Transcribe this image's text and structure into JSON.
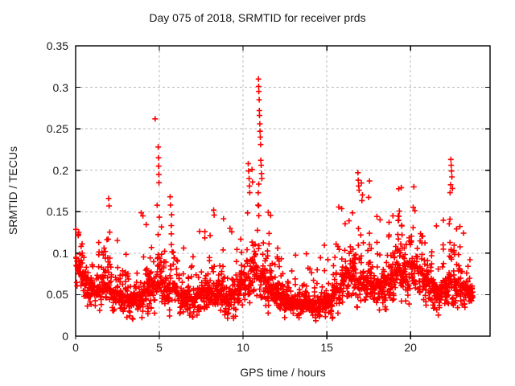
{
  "chart_data": {
    "type": "scatter",
    "title": "Day 075 of 2018, SRMTID for receiver prds",
    "xlabel": "GPS time / hours",
    "ylabel": "SRMTID / TECUs",
    "xlim": [
      0,
      24.75
    ],
    "ylim": [
      0,
      0.35
    ],
    "xticks": [
      0,
      5,
      10,
      15,
      20
    ],
    "xtick_labels": [
      "0",
      "5",
      "10",
      "15",
      "20"
    ],
    "yticks": [
      0,
      0.05,
      0.1,
      0.15,
      0.2,
      0.25,
      0.3,
      0.35
    ],
    "ytick_labels": [
      "0",
      "0.05",
      "0.1",
      "0.15",
      "0.2",
      "0.25",
      "0.3",
      "0.35"
    ],
    "grid": true,
    "legend_position": "none",
    "marker": {
      "shape": "plus",
      "color": "#ff0000",
      "size": 7,
      "stroke_width": 1.6
    },
    "frame_color": "#000000",
    "grid_color": "#b9b9b9",
    "text_color": "#1a1a1a",
    "density_model": {
      "seed": 20180075,
      "n_columns": 680,
      "x_start": 0.03,
      "x_end": 23.7,
      "min_floor": 0.015,
      "floor_med_ratio": 0.35,
      "envelope": [
        [
          0.0,
          0.085,
          0.15
        ],
        [
          0.4,
          0.072,
          0.135
        ],
        [
          0.9,
          0.065,
          0.15
        ],
        [
          1.4,
          0.055,
          0.115
        ],
        [
          1.97,
          0.058,
          0.158
        ],
        [
          2.5,
          0.05,
          0.105
        ],
        [
          3.2,
          0.045,
          0.108
        ],
        [
          4.0,
          0.05,
          0.138
        ],
        [
          4.5,
          0.055,
          0.125
        ],
        [
          4.95,
          0.078,
          0.185
        ],
        [
          5.3,
          0.058,
          0.135
        ],
        [
          5.65,
          0.062,
          0.16
        ],
        [
          6.2,
          0.048,
          0.105
        ],
        [
          7.0,
          0.044,
          0.1
        ],
        [
          7.7,
          0.055,
          0.14
        ],
        [
          8.3,
          0.058,
          0.148
        ],
        [
          9.0,
          0.048,
          0.115
        ],
        [
          9.6,
          0.055,
          0.12
        ],
        [
          10.35,
          0.075,
          0.185
        ],
        [
          10.95,
          0.088,
          0.23
        ],
        [
          11.35,
          0.068,
          0.148
        ],
        [
          12.0,
          0.05,
          0.11
        ],
        [
          12.6,
          0.046,
          0.115
        ],
        [
          13.3,
          0.04,
          0.085
        ],
        [
          14.0,
          0.04,
          0.096
        ],
        [
          14.7,
          0.041,
          0.09
        ],
        [
          15.4,
          0.05,
          0.112
        ],
        [
          16.05,
          0.068,
          0.158
        ],
        [
          16.6,
          0.082,
          0.18
        ],
        [
          17.15,
          0.072,
          0.155
        ],
        [
          17.8,
          0.058,
          0.128
        ],
        [
          18.5,
          0.065,
          0.14
        ],
        [
          19.1,
          0.078,
          0.165
        ],
        [
          19.8,
          0.088,
          0.152
        ],
        [
          20.4,
          0.082,
          0.148
        ],
        [
          21.0,
          0.068,
          0.128
        ],
        [
          21.6,
          0.058,
          0.132
        ],
        [
          22.2,
          0.068,
          0.172
        ],
        [
          22.75,
          0.062,
          0.148
        ],
        [
          23.2,
          0.058,
          0.138
        ],
        [
          23.7,
          0.048,
          0.108
        ]
      ]
    },
    "outliers": [
      [
        4.75,
        0.262
      ],
      [
        4.93,
        0.228
      ],
      [
        4.95,
        0.215
      ],
      [
        4.96,
        0.205
      ],
      [
        4.97,
        0.195
      ],
      [
        4.98,
        0.185
      ],
      [
        5.64,
        0.168
      ],
      [
        5.66,
        0.158
      ],
      [
        1.97,
        0.166
      ],
      [
        2.0,
        0.157
      ],
      [
        4.02,
        0.145
      ],
      [
        8.24,
        0.152
      ],
      [
        8.27,
        0.146
      ],
      [
        10.31,
        0.208
      ],
      [
        10.33,
        0.199
      ],
      [
        10.36,
        0.19
      ],
      [
        10.38,
        0.181
      ],
      [
        10.4,
        0.173
      ],
      [
        10.92,
        0.31
      ],
      [
        10.93,
        0.301
      ],
      [
        10.94,
        0.295
      ],
      [
        10.96,
        0.285
      ],
      [
        10.97,
        0.272
      ],
      [
        10.98,
        0.266
      ],
      [
        11.0,
        0.256
      ],
      [
        11.01,
        0.247
      ],
      [
        11.03,
        0.24
      ],
      [
        11.05,
        0.231
      ],
      [
        11.06,
        0.212
      ],
      [
        11.08,
        0.206
      ],
      [
        11.1,
        0.196
      ],
      [
        11.12,
        0.19
      ],
      [
        16.86,
        0.197
      ],
      [
        16.88,
        0.188
      ],
      [
        16.9,
        0.181
      ],
      [
        16.93,
        0.176
      ],
      [
        17.55,
        0.187
      ],
      [
        19.45,
        0.179
      ],
      [
        20.2,
        0.18
      ],
      [
        22.41,
        0.213
      ],
      [
        22.43,
        0.206
      ],
      [
        22.45,
        0.199
      ],
      [
        22.47,
        0.192
      ],
      [
        22.5,
        0.178
      ]
    ]
  }
}
